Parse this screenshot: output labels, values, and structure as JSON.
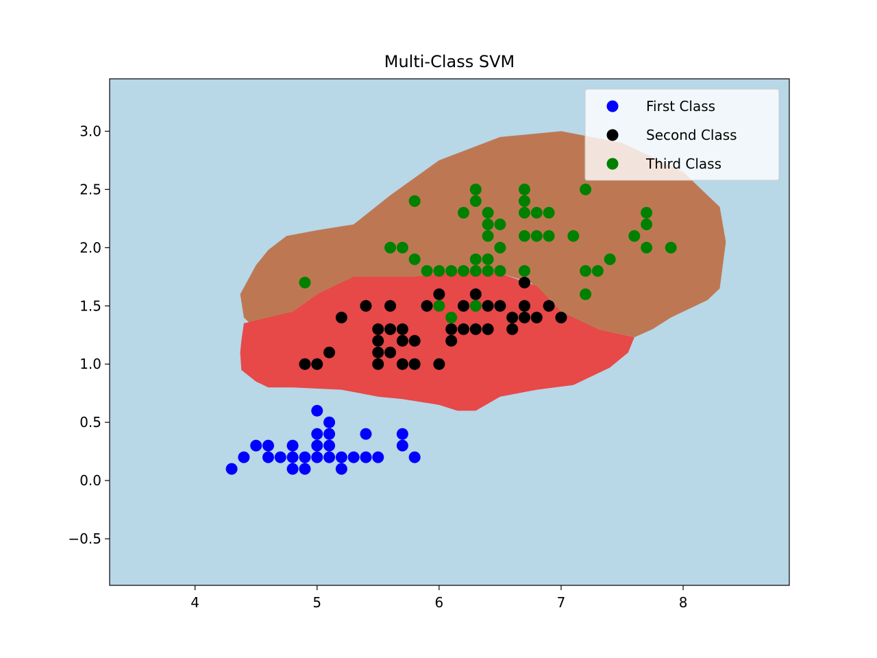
{
  "chart_data": {
    "type": "scatter",
    "title": "Multi-Class SVM",
    "xlabel": "",
    "ylabel": "",
    "xlim": [
      3.3,
      8.87
    ],
    "ylim": [
      -0.9,
      3.45
    ],
    "xticks": [
      4,
      5,
      6,
      7,
      8
    ],
    "yticks": [
      -0.5,
      0.0,
      0.5,
      1.0,
      1.5,
      2.0,
      2.5,
      3.0
    ],
    "xtick_labels": [
      "4",
      "5",
      "6",
      "7",
      "8"
    ],
    "ytick_labels": [
      "−0.5",
      "0.0",
      "0.5",
      "1.0",
      "1.5",
      "2.0",
      "2.5",
      "3.0"
    ],
    "grid": false,
    "legend": "top-right",
    "background_color": "#b8d7e7",
    "regions": [
      {
        "color": "#bd7853",
        "polygon": [
          [
            4.5,
            1.85
          ],
          [
            4.6,
            1.98
          ],
          [
            4.75,
            2.1
          ],
          [
            5.0,
            2.15
          ],
          [
            5.3,
            2.2
          ],
          [
            5.6,
            2.45
          ],
          [
            6.0,
            2.75
          ],
          [
            6.5,
            2.95
          ],
          [
            7.0,
            3.0
          ],
          [
            7.5,
            2.9
          ],
          [
            8.0,
            2.65
          ],
          [
            8.3,
            2.35
          ],
          [
            8.35,
            2.05
          ],
          [
            8.3,
            1.65
          ],
          [
            8.2,
            1.55
          ],
          [
            7.9,
            1.4
          ],
          [
            7.75,
            1.3
          ],
          [
            7.6,
            1.23
          ],
          [
            7.3,
            1.3
          ],
          [
            7.0,
            1.4
          ],
          [
            6.9,
            1.55
          ],
          [
            6.75,
            1.7
          ],
          [
            6.5,
            1.78
          ],
          [
            6.2,
            1.8
          ],
          [
            5.9,
            1.75
          ],
          [
            5.5,
            1.73
          ],
          [
            5.0,
            1.6
          ],
          [
            4.8,
            1.45
          ],
          [
            4.6,
            1.38
          ],
          [
            4.45,
            1.35
          ],
          [
            4.4,
            1.4
          ],
          [
            4.37,
            1.6
          ]
        ]
      },
      {
        "color": "#e74848",
        "polygon": [
          [
            4.4,
            1.35
          ],
          [
            4.8,
            1.45
          ],
          [
            5.0,
            1.6
          ],
          [
            5.3,
            1.75
          ],
          [
            5.8,
            1.75
          ],
          [
            6.2,
            1.8
          ],
          [
            6.5,
            1.78
          ],
          [
            6.8,
            1.67
          ],
          [
            7.0,
            1.45
          ],
          [
            7.3,
            1.3
          ],
          [
            7.6,
            1.23
          ],
          [
            7.55,
            1.1
          ],
          [
            7.4,
            0.97
          ],
          [
            7.1,
            0.82
          ],
          [
            6.8,
            0.78
          ],
          [
            6.5,
            0.72
          ],
          [
            6.3,
            0.6
          ],
          [
            6.15,
            0.6
          ],
          [
            6.0,
            0.65
          ],
          [
            5.7,
            0.7
          ],
          [
            5.5,
            0.72
          ],
          [
            5.2,
            0.78
          ],
          [
            4.8,
            0.8
          ],
          [
            4.6,
            0.8
          ],
          [
            4.5,
            0.85
          ],
          [
            4.38,
            0.95
          ],
          [
            4.37,
            1.1
          ],
          [
            4.38,
            1.2
          ]
        ]
      }
    ],
    "series": [
      {
        "name": "First Class",
        "color": "#0000ff",
        "points": [
          [
            4.3,
            0.1
          ],
          [
            4.4,
            0.2
          ],
          [
            4.5,
            0.3
          ],
          [
            4.6,
            0.3
          ],
          [
            4.6,
            0.2
          ],
          [
            4.7,
            0.2
          ],
          [
            4.8,
            0.3
          ],
          [
            4.8,
            0.2
          ],
          [
            4.8,
            0.1
          ],
          [
            4.9,
            0.2
          ],
          [
            4.9,
            0.1
          ],
          [
            5.0,
            0.6
          ],
          [
            5.0,
            0.4
          ],
          [
            5.0,
            0.3
          ],
          [
            5.0,
            0.2
          ],
          [
            5.1,
            0.5
          ],
          [
            5.1,
            0.4
          ],
          [
            5.1,
            0.3
          ],
          [
            5.1,
            0.2
          ],
          [
            5.2,
            0.2
          ],
          [
            5.2,
            0.1
          ],
          [
            5.3,
            0.2
          ],
          [
            5.4,
            0.4
          ],
          [
            5.4,
            0.2
          ],
          [
            5.5,
            0.2
          ],
          [
            5.7,
            0.4
          ],
          [
            5.7,
            0.3
          ],
          [
            5.8,
            0.2
          ]
        ]
      },
      {
        "name": "Second Class",
        "color": "#000000",
        "points": [
          [
            4.9,
            1.0
          ],
          [
            5.0,
            1.0
          ],
          [
            5.1,
            1.1
          ],
          [
            5.2,
            1.4
          ],
          [
            5.4,
            1.5
          ],
          [
            5.5,
            1.3
          ],
          [
            5.5,
            1.2
          ],
          [
            5.5,
            1.1
          ],
          [
            5.5,
            1.0
          ],
          [
            5.6,
            1.5
          ],
          [
            5.6,
            1.3
          ],
          [
            5.6,
            1.1
          ],
          [
            5.7,
            1.3
          ],
          [
            5.7,
            1.2
          ],
          [
            5.7,
            1.0
          ],
          [
            5.8,
            1.2
          ],
          [
            5.8,
            1.0
          ],
          [
            5.9,
            1.5
          ],
          [
            6.0,
            1.6
          ],
          [
            6.0,
            1.0
          ],
          [
            6.1,
            1.3
          ],
          [
            6.1,
            1.2
          ],
          [
            6.2,
            1.5
          ],
          [
            6.2,
            1.3
          ],
          [
            6.3,
            1.6
          ],
          [
            6.3,
            1.3
          ],
          [
            6.4,
            1.5
          ],
          [
            6.4,
            1.3
          ],
          [
            6.5,
            1.5
          ],
          [
            6.6,
            1.4
          ],
          [
            6.6,
            1.3
          ],
          [
            6.7,
            1.7
          ],
          [
            6.7,
            1.5
          ],
          [
            6.7,
            1.4
          ],
          [
            6.8,
            1.4
          ],
          [
            6.9,
            1.5
          ],
          [
            7.0,
            1.4
          ]
        ]
      },
      {
        "name": "Third Class",
        "color": "#008000",
        "points": [
          [
            4.9,
            1.7
          ],
          [
            5.6,
            2.0
          ],
          [
            5.7,
            2.0
          ],
          [
            5.8,
            2.4
          ],
          [
            5.8,
            1.9
          ],
          [
            5.9,
            1.8
          ],
          [
            6.0,
            1.8
          ],
          [
            6.0,
            1.5
          ],
          [
            6.1,
            1.8
          ],
          [
            6.1,
            1.4
          ],
          [
            6.2,
            2.3
          ],
          [
            6.2,
            1.8
          ],
          [
            6.3,
            2.5
          ],
          [
            6.3,
            2.4
          ],
          [
            6.3,
            1.9
          ],
          [
            6.3,
            1.8
          ],
          [
            6.3,
            1.5
          ],
          [
            6.4,
            2.3
          ],
          [
            6.4,
            2.2
          ],
          [
            6.4,
            2.1
          ],
          [
            6.4,
            1.9
          ],
          [
            6.4,
            1.8
          ],
          [
            6.5,
            2.2
          ],
          [
            6.5,
            2.0
          ],
          [
            6.5,
            1.8
          ],
          [
            6.7,
            2.5
          ],
          [
            6.7,
            2.4
          ],
          [
            6.7,
            2.3
          ],
          [
            6.7,
            2.1
          ],
          [
            6.7,
            1.8
          ],
          [
            6.8,
            2.3
          ],
          [
            6.8,
            2.1
          ],
          [
            6.9,
            2.3
          ],
          [
            6.9,
            2.1
          ],
          [
            7.1,
            2.1
          ],
          [
            7.2,
            2.5
          ],
          [
            7.2,
            1.8
          ],
          [
            7.2,
            1.6
          ],
          [
            7.3,
            1.8
          ],
          [
            7.4,
            1.9
          ],
          [
            7.6,
            2.1
          ],
          [
            7.7,
            2.3
          ],
          [
            7.7,
            2.2
          ],
          [
            7.7,
            2.0
          ],
          [
            7.9,
            2.0
          ]
        ]
      }
    ]
  }
}
